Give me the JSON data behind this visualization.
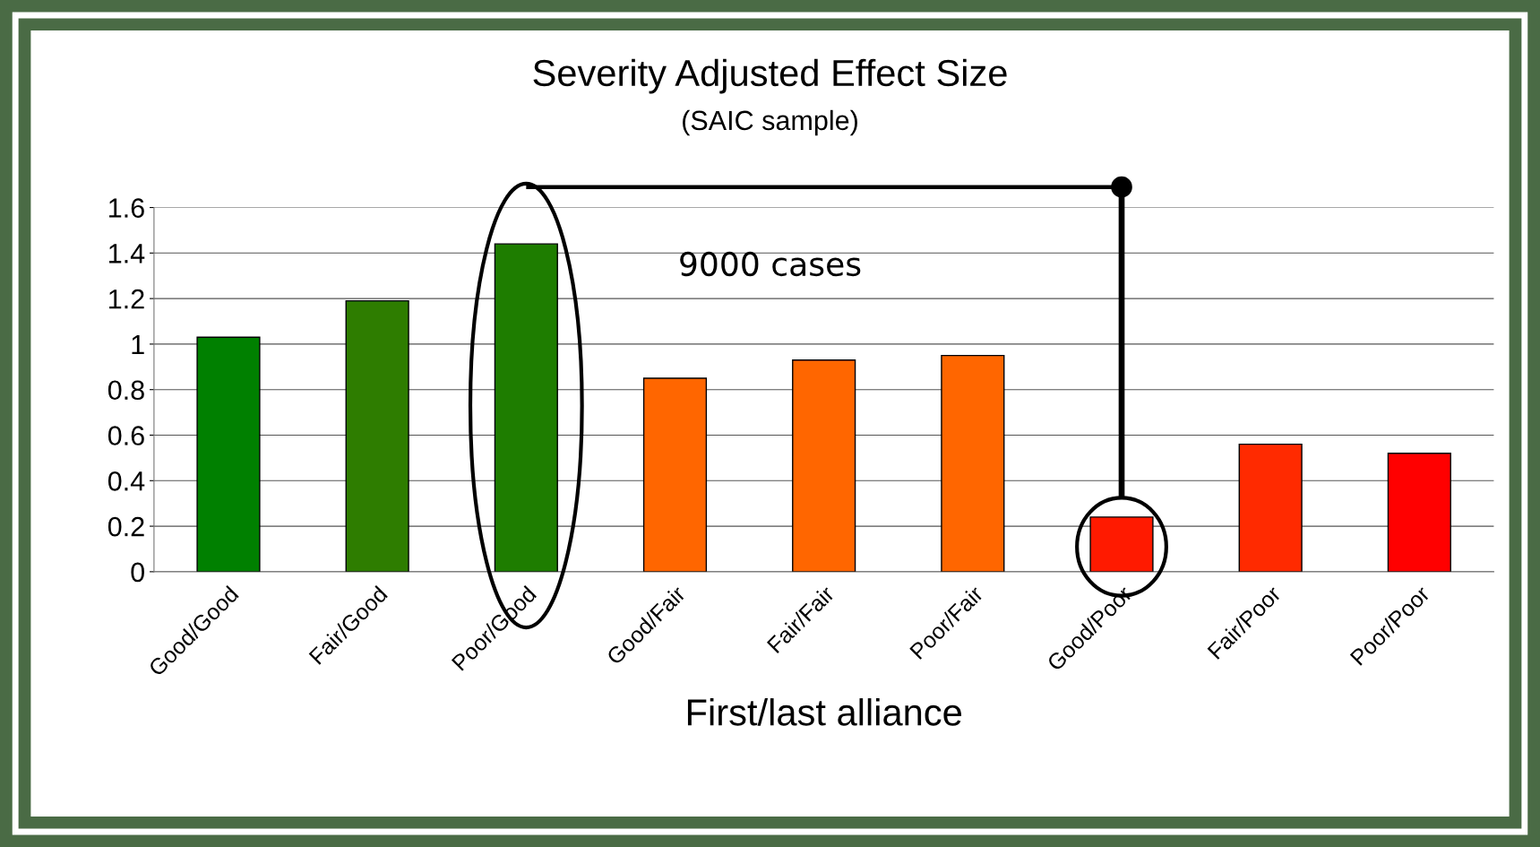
{
  "chart_data": {
    "type": "bar",
    "title": "Severity Adjusted Effect Size",
    "subtitle": "(SAIC sample)",
    "xlabel": "First/last alliance",
    "categories": [
      "Good/Good",
      "Fair/Good",
      "Poor/Good",
      "Good/Fair",
      "Fair/Fair",
      "Poor/Fair",
      "Good/Poor",
      "Fair/Poor",
      "Poor/Poor"
    ],
    "values": [
      1.03,
      1.19,
      1.44,
      0.85,
      0.93,
      0.95,
      0.24,
      0.56,
      0.52
    ],
    "colors": [
      "#008000",
      "#2e7d00",
      "#1e7d00",
      "#ff6600",
      "#ff6600",
      "#ff6600",
      "#ff1a00",
      "#ff2a00",
      "#ff0000"
    ],
    "ylim": [
      0,
      1.6
    ],
    "yticks": [
      0,
      0.2,
      0.4,
      0.6,
      0.8,
      1,
      1.2,
      1.4,
      1.6
    ],
    "grid": "y",
    "annotations": [
      "9000 cases"
    ]
  }
}
